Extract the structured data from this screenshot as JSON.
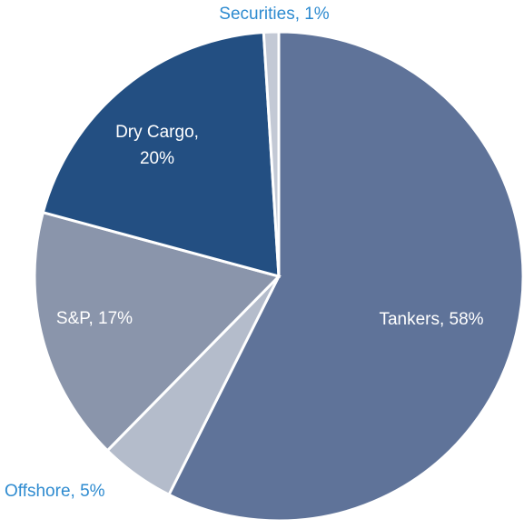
{
  "chart_data": {
    "type": "pie",
    "values": [
      58,
      5,
      17,
      20,
      1
    ],
    "value_labels": [
      "Tankers, 58%",
      "Offshore, 5%",
      "S&P, 17%",
      "Dry Cargo, 20%",
      "Securities, 1%"
    ],
    "colors": [
      "#5f7399",
      "#b4bccb",
      "#8a95ab",
      "#234f82",
      "#c3c9d5"
    ]
  }
}
